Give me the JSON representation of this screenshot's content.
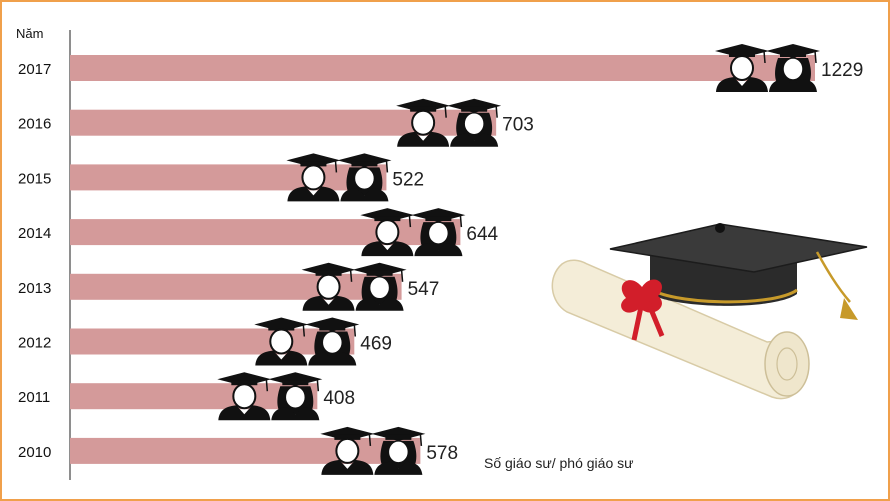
{
  "chart_data": {
    "type": "bar",
    "orientation": "horizontal",
    "ylabel": "Năm",
    "xlabel": "Số giáo sư/ phó giáo sư",
    "categories": [
      "2017",
      "2016",
      "2015",
      "2014",
      "2013",
      "2012",
      "2011",
      "2010"
    ],
    "values": [
      1229,
      703,
      522,
      644,
      547,
      469,
      408,
      578
    ],
    "xlim": [
      0,
      1300
    ],
    "grid": false,
    "legend": "none",
    "colors": {
      "bar": "#d49a9a",
      "frame": "#f0a04b",
      "axis": "#444444",
      "icon": "#111111"
    },
    "icons": [
      "male-graduate-icon",
      "female-graduate-icon",
      "graduation-cap-diploma-icon"
    ]
  }
}
